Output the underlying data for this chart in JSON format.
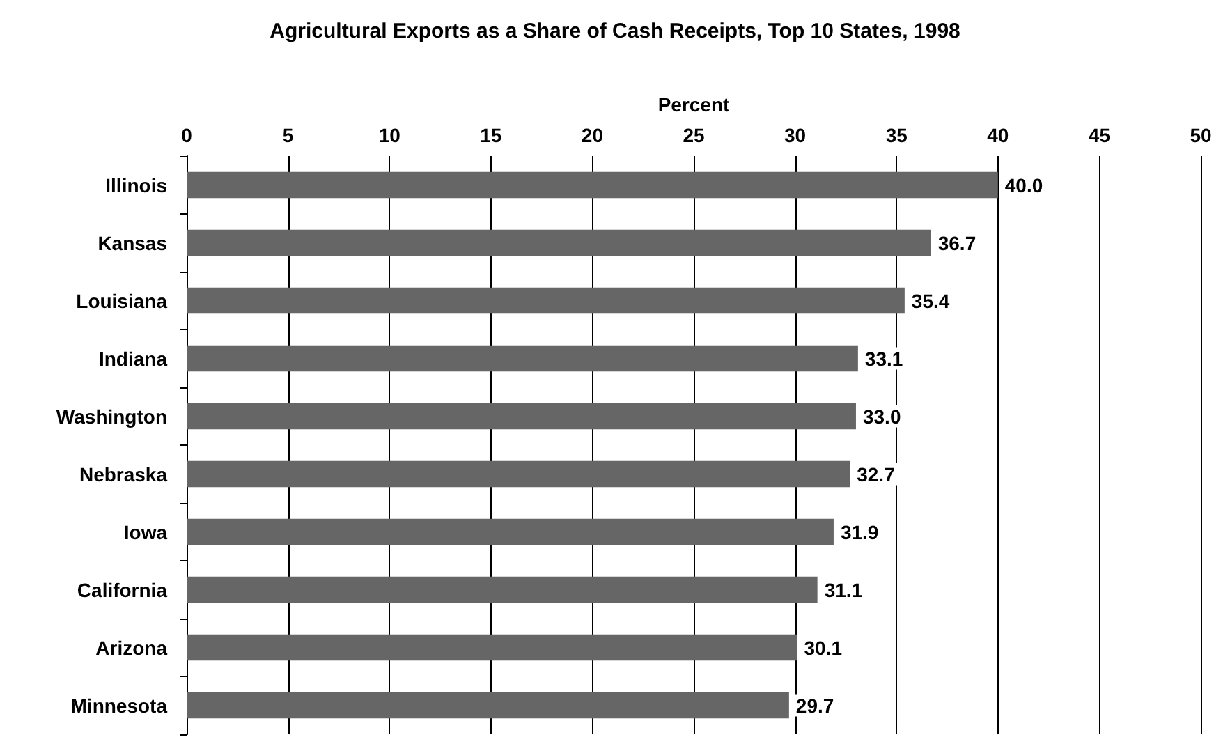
{
  "chart_data": {
    "type": "bar",
    "orientation": "horizontal",
    "title": "Agricultural Exports as a Share of Cash Receipts, Top 10 States, 1998",
    "xlabel": "Percent",
    "categories": [
      "Illinois",
      "Kansas",
      "Louisiana",
      "Indiana",
      "Washington",
      "Nebraska",
      "Iowa",
      "California",
      "Arizona",
      "Minnesota"
    ],
    "values": [
      40.0,
      36.7,
      35.4,
      33.1,
      33.0,
      32.7,
      31.9,
      31.1,
      30.1,
      29.7
    ],
    "value_labels": [
      "40.0",
      "36.7",
      "35.4",
      "33.1",
      "33.0",
      "32.7",
      "31.9",
      "31.1",
      "30.1",
      "29.7"
    ],
    "color": "#666666",
    "xlim": [
      0,
      50
    ],
    "xticks": [
      0,
      5,
      10,
      15,
      20,
      25,
      30,
      35,
      40,
      45,
      50
    ],
    "grid": "x"
  }
}
